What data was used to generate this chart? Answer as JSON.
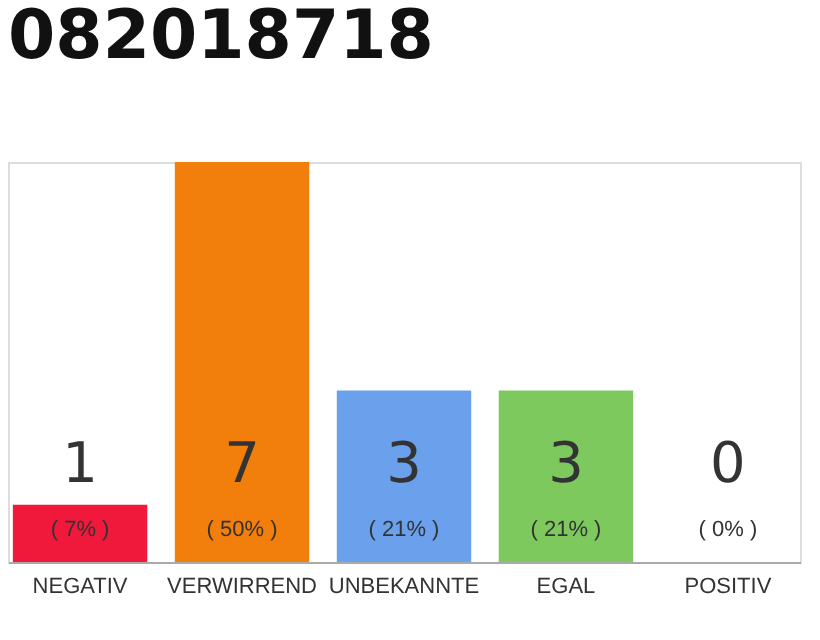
{
  "chart_data": {
    "type": "bar",
    "title": "082018718",
    "categories": [
      "NEGATIV",
      "VERWIRREND",
      "UNBEKANNTE",
      "EGAL",
      "POSITIV"
    ],
    "values": [
      1,
      7,
      3,
      3,
      0
    ],
    "colors": [
      "#f0193c",
      "#f27e0b",
      "#6aa0ec",
      "#7dc95e",
      "#cccccc"
    ],
    "tick_labels": "x",
    "grid": false,
    "value_labels": [
      "1",
      "7",
      "3",
      "3",
      "0"
    ],
    "annotations": [
      "( 7% )",
      "( 50% )",
      "( 21% )",
      "( 21% )",
      "( 0% )"
    ]
  }
}
